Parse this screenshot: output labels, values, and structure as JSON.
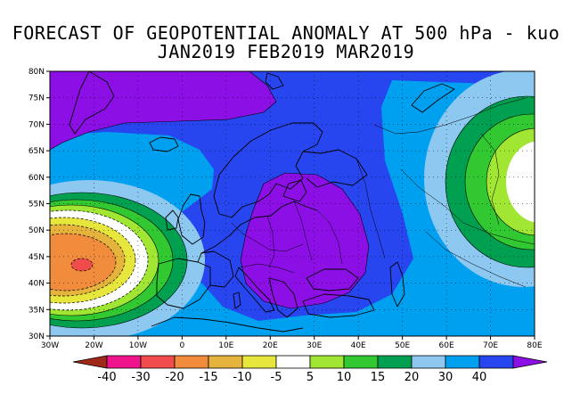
{
  "title": {
    "line1": "FORECAST OF GEOPOTENTIAL ANOMALY AT 500 hPa - kuo",
    "line2": "JAN2019 FEB2019 MAR2019"
  },
  "map": {
    "lon_range": [
      -30,
      80
    ],
    "lat_range": [
      30,
      80
    ],
    "x_tick_labels": [
      "30W",
      "20W",
      "10W",
      "0",
      "10E",
      "20E",
      "30E",
      "40E",
      "50E",
      "60E",
      "70E",
      "80E"
    ],
    "y_tick_labels": [
      "30N",
      "35N",
      "40N",
      "45N",
      "50N",
      "55N",
      "60N",
      "65N",
      "70N",
      "75N",
      "80N"
    ],
    "grid": "dotted"
  },
  "colorbar": {
    "labels": [
      "-40",
      "-30",
      "-20",
      "-15",
      "-10",
      "-5",
      "5",
      "10",
      "15",
      "20",
      "30",
      "40"
    ],
    "colors": [
      "#a02818",
      "#f0148c",
      "#f04c4c",
      "#f08c3c",
      "#e6b43c",
      "#e6e63c",
      "#ffffff",
      "#a0e632",
      "#32c832",
      "#00a050",
      "#8cc8f0",
      "#00a0f0",
      "#2846f0",
      "#8c0fe6"
    ]
  }
}
